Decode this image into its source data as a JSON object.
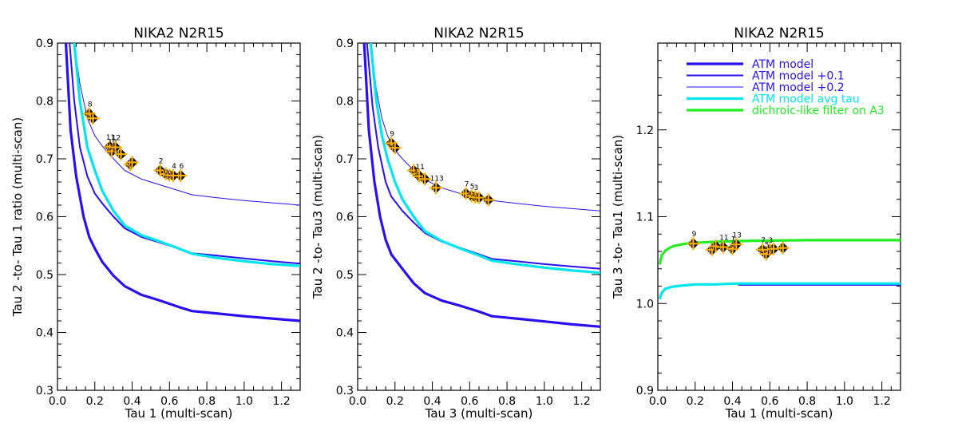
{
  "chart_data": [
    {
      "type": "line",
      "title": "NIKA2  N2R15",
      "xlabel": "Tau 1 (multi-scan)",
      "ylabel": "Tau 2 -to- Tau 1 ratio (multi-scan)",
      "xlim": [
        0.0,
        1.3
      ],
      "ylim": [
        0.3,
        0.9
      ],
      "xticks": [
        "0.0",
        "0.2",
        "0.4",
        "0.6",
        "0.8",
        "1.0",
        "1.2"
      ],
      "yticks": [
        "0.3",
        "0.4",
        "0.5",
        "0.6",
        "0.7",
        "0.8",
        "0.9"
      ],
      "series": [
        {
          "name": "ATM model",
          "color": "#2a0ff0",
          "width": "thick",
          "x": [
            0.045,
            0.07,
            0.1,
            0.14,
            0.17,
            0.2,
            0.24,
            0.3,
            0.36,
            0.45,
            0.55,
            0.65,
            0.72,
            0.85,
            1.0,
            1.15,
            1.3
          ],
          "y": [
            0.9,
            0.75,
            0.67,
            0.6,
            0.565,
            0.545,
            0.522,
            0.498,
            0.48,
            0.465,
            0.455,
            0.444,
            0.437,
            0.433,
            0.428,
            0.424,
            0.42
          ]
        },
        {
          "name": "ATM model +0.1",
          "color": "#2a0ff0",
          "width": "medium",
          "x": [
            0.065,
            0.09,
            0.12,
            0.16,
            0.2,
            0.24,
            0.3,
            0.36,
            0.45,
            0.55,
            0.65,
            0.72,
            0.85,
            1.0,
            1.15,
            1.3
          ],
          "y": [
            0.9,
            0.8,
            0.72,
            0.67,
            0.64,
            0.623,
            0.6,
            0.58,
            0.565,
            0.555,
            0.545,
            0.537,
            0.533,
            0.528,
            0.523,
            0.519
          ]
        },
        {
          "name": "ATM model +0.2",
          "color": "#2a0ff0",
          "width": "thin",
          "x": [
            0.09,
            0.12,
            0.16,
            0.2,
            0.24,
            0.3,
            0.36,
            0.45,
            0.55,
            0.65,
            0.72,
            0.85,
            1.0,
            1.15,
            1.3
          ],
          "y": [
            0.9,
            0.83,
            0.77,
            0.74,
            0.722,
            0.7,
            0.68,
            0.665,
            0.655,
            0.645,
            0.638,
            0.633,
            0.628,
            0.624,
            0.62
          ]
        },
        {
          "name": "ATM model avg tau",
          "color": "#00e5ee",
          "width": "thick",
          "x": [
            0.09,
            0.12,
            0.16,
            0.2,
            0.24,
            0.3,
            0.36,
            0.45,
            0.55,
            0.65,
            0.72,
            0.85,
            1.0,
            1.15,
            1.3
          ],
          "y": [
            0.9,
            0.8,
            0.72,
            0.68,
            0.645,
            0.61,
            0.585,
            0.568,
            0.557,
            0.545,
            0.536,
            0.529,
            0.523,
            0.518,
            0.515
          ]
        }
      ],
      "points": [
        {
          "x": 0.17,
          "y": 0.778,
          "label": "8"
        },
        {
          "x": 0.19,
          "y": 0.77,
          "label": ""
        },
        {
          "x": 0.28,
          "y": 0.721,
          "label": "11"
        },
        {
          "x": 0.29,
          "y": 0.713,
          "label": "10"
        },
        {
          "x": 0.31,
          "y": 0.72,
          "label": "12"
        },
        {
          "x": 0.34,
          "y": 0.708,
          "label": ""
        },
        {
          "x": 0.39,
          "y": 0.69,
          "label": ""
        },
        {
          "x": 0.4,
          "y": 0.694,
          "label": ""
        },
        {
          "x": 0.55,
          "y": 0.68,
          "label": "2"
        },
        {
          "x": 0.58,
          "y": 0.674,
          "label": ""
        },
        {
          "x": 0.6,
          "y": 0.672,
          "label": ""
        },
        {
          "x": 0.62,
          "y": 0.671,
          "label": "4"
        },
        {
          "x": 0.66,
          "y": 0.671,
          "label": "6"
        }
      ]
    },
    {
      "type": "line",
      "title": "NIKA2  N2R15",
      "xlabel": "Tau 3 (multi-scan)",
      "ylabel": "Tau 2 -to- Tau3  (multi-scan)",
      "xlim": [
        0.0,
        1.3
      ],
      "ylim": [
        0.3,
        0.9
      ],
      "xticks": [
        "0.0",
        "0.2",
        "0.4",
        "0.6",
        "0.8",
        "1.0",
        "1.2"
      ],
      "yticks": [
        "0.3",
        "0.4",
        "0.5",
        "0.6",
        "0.7",
        "0.8",
        "0.9"
      ],
      "series": [
        {
          "name": "ATM model",
          "color": "#2a0ff0",
          "width": "thick",
          "x": [
            0.035,
            0.06,
            0.09,
            0.12,
            0.15,
            0.18,
            0.24,
            0.3,
            0.36,
            0.45,
            0.55,
            0.65,
            0.72,
            0.85,
            1.0,
            1.15,
            1.3
          ],
          "y": [
            0.9,
            0.75,
            0.66,
            0.6,
            0.56,
            0.535,
            0.51,
            0.485,
            0.468,
            0.455,
            0.446,
            0.436,
            0.428,
            0.424,
            0.419,
            0.414,
            0.41
          ]
        },
        {
          "name": "ATM model +0.1",
          "color": "#2a0ff0",
          "width": "medium",
          "x": [
            0.05,
            0.08,
            0.11,
            0.15,
            0.18,
            0.24,
            0.3,
            0.36,
            0.45,
            0.55,
            0.65,
            0.72,
            0.85,
            1.0,
            1.15,
            1.3
          ],
          "y": [
            0.9,
            0.79,
            0.72,
            0.66,
            0.635,
            0.61,
            0.59,
            0.572,
            0.557,
            0.546,
            0.535,
            0.527,
            0.523,
            0.518,
            0.514,
            0.51
          ]
        },
        {
          "name": "ATM model +0.2",
          "color": "#2a0ff0",
          "width": "thin",
          "x": [
            0.07,
            0.1,
            0.13,
            0.16,
            0.2,
            0.24,
            0.3,
            0.36,
            0.45,
            0.55,
            0.65,
            0.72,
            0.85,
            1.0,
            1.15,
            1.3
          ],
          "y": [
            0.9,
            0.82,
            0.77,
            0.74,
            0.715,
            0.7,
            0.68,
            0.664,
            0.65,
            0.64,
            0.633,
            0.628,
            0.623,
            0.618,
            0.614,
            0.61
          ]
        },
        {
          "name": "ATM model avg tau",
          "color": "#00e5ee",
          "width": "thick",
          "x": [
            0.07,
            0.1,
            0.13,
            0.16,
            0.2,
            0.24,
            0.3,
            0.36,
            0.45,
            0.55,
            0.65,
            0.72,
            0.85,
            1.0,
            1.15,
            1.3
          ],
          "y": [
            0.9,
            0.8,
            0.74,
            0.7,
            0.66,
            0.63,
            0.6,
            0.575,
            0.558,
            0.545,
            0.533,
            0.524,
            0.518,
            0.512,
            0.507,
            0.503
          ]
        }
      ],
      "points": [
        {
          "x": 0.18,
          "y": 0.727,
          "label": "9"
        },
        {
          "x": 0.2,
          "y": 0.719,
          "label": ""
        },
        {
          "x": 0.3,
          "y": 0.68,
          "label": ""
        },
        {
          "x": 0.32,
          "y": 0.674,
          "label": ""
        },
        {
          "x": 0.33,
          "y": 0.67,
          "label": "11"
        },
        {
          "x": 0.36,
          "y": 0.665,
          "label": ""
        },
        {
          "x": 0.42,
          "y": 0.65,
          "label": "113"
        },
        {
          "x": 0.58,
          "y": 0.64,
          "label": "7"
        },
        {
          "x": 0.61,
          "y": 0.636,
          "label": "5"
        },
        {
          "x": 0.63,
          "y": 0.634,
          "label": "3"
        },
        {
          "x": 0.65,
          "y": 0.633,
          "label": ""
        },
        {
          "x": 0.7,
          "y": 0.629,
          "label": ""
        }
      ]
    },
    {
      "type": "line",
      "title": "NIKA2  N2R15",
      "xlabel": "Tau 1 (multi-scan)",
      "ylabel": "Tau 3 -to- Tau1  (multi-scan)",
      "xlim": [
        0.0,
        1.3
      ],
      "ylim": [
        0.9,
        1.3
      ],
      "xticks": [
        "0.0",
        "0.2",
        "0.4",
        "0.6",
        "0.8",
        "1.0",
        "1.2"
      ],
      "yticks": [
        "0.9",
        "1.0",
        "1.1",
        "1.2"
      ],
      "legend_position": "top-left",
      "series": [
        {
          "name": "ATM model",
          "color": "#2a0ff0",
          "width": "thick",
          "x": [
            0.43,
            1.3
          ],
          "y": [
            1.022,
            1.022
          ]
        },
        {
          "name": "ATM model avg tau",
          "color": "#00e5ee",
          "width": "thick",
          "x": [
            0.01,
            0.02,
            0.04,
            0.07,
            0.1,
            0.15,
            0.2,
            0.3,
            0.43,
            0.8,
            1.3
          ],
          "y": [
            1.005,
            1.012,
            1.017,
            1.019,
            1.02,
            1.021,
            1.022,
            1.022,
            1.023,
            1.023,
            1.023
          ]
        },
        {
          "name": "dichroic-like filter on A3",
          "color": "#22ee22",
          "width": "thick",
          "x": [
            0.01,
            0.02,
            0.04,
            0.07,
            0.1,
            0.15,
            0.2,
            0.3,
            0.45,
            0.8,
            1.3
          ],
          "y": [
            1.045,
            1.055,
            1.061,
            1.065,
            1.067,
            1.069,
            1.07,
            1.071,
            1.072,
            1.073,
            1.073
          ]
        }
      ],
      "legend": [
        {
          "name": "ATM model",
          "color": "#2a0ff0",
          "width": "thick"
        },
        {
          "name": "ATM model +0.1",
          "color": "#2a0ff0",
          "width": "medium"
        },
        {
          "name": "ATM model +0.2",
          "color": "#2a0ff0",
          "width": "thin"
        },
        {
          "name": "ATM model avg tau",
          "color": "#00e5ee",
          "width": "thick"
        },
        {
          "name": "dichroic-like filter on A3",
          "color": "#22ee22",
          "width": "thick"
        }
      ],
      "points": [
        {
          "x": 0.19,
          "y": 1.069,
          "label": "9"
        },
        {
          "x": 0.29,
          "y": 1.062,
          "label": ""
        },
        {
          "x": 0.31,
          "y": 1.066,
          "label": ""
        },
        {
          "x": 0.35,
          "y": 1.065,
          "label": "11"
        },
        {
          "x": 0.4,
          "y": 1.063,
          "label": "1"
        },
        {
          "x": 0.42,
          "y": 1.068,
          "label": "13"
        },
        {
          "x": 0.56,
          "y": 1.062,
          "label": "7"
        },
        {
          "x": 0.58,
          "y": 1.057,
          "label": "5"
        },
        {
          "x": 0.6,
          "y": 1.062,
          "label": "3"
        },
        {
          "x": 0.62,
          "y": 1.063,
          "label": ""
        },
        {
          "x": 0.67,
          "y": 1.064,
          "label": ""
        }
      ]
    }
  ],
  "colors": {
    "atm": "#2a0ff0",
    "avg_tau": "#00e5ee",
    "dichroic": "#22ee22",
    "marker_fill": "#ffb000",
    "marker_edge": "#000000"
  }
}
